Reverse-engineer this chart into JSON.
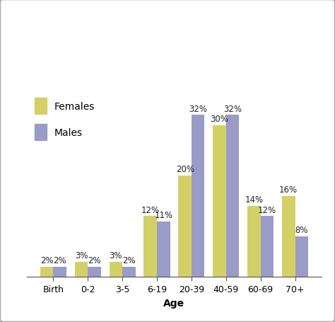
{
  "categories": [
    "Birth",
    "0-2",
    "3-5",
    "6-19",
    "20-39",
    "40-59",
    "60-69",
    "70+"
  ],
  "females": [
    2,
    3,
    3,
    12,
    20,
    30,
    14,
    16
  ],
  "males": [
    2,
    2,
    2,
    11,
    32,
    32,
    12,
    8
  ],
  "female_color": "#d4d068",
  "male_color": "#9b9bc8",
  "xlabel": "Age",
  "ylim": [
    0,
    37
  ],
  "bar_width": 0.38,
  "legend_labels": [
    "Females",
    "Males"
  ],
  "background_color": "#ffffff",
  "border_color": "#b0b0b0",
  "label_fontsize": 8.5,
  "axis_label_fontsize": 10,
  "tick_fontsize": 9,
  "legend_fontsize": 10
}
